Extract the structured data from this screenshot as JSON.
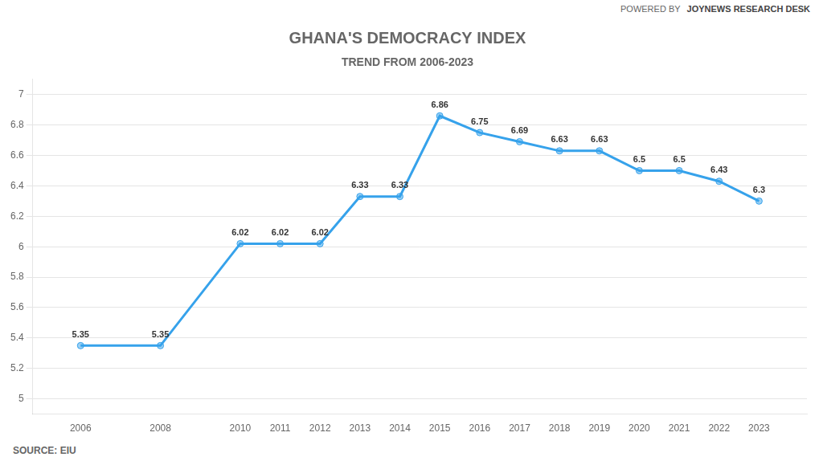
{
  "chart_data": {
    "type": "line",
    "title": "GHANA'S DEMOCRACY INDEX",
    "subtitle": "TREND FROM 2006-2023",
    "annotations": [
      "POWERED BY",
      "JOYNEWS RESEARCH DESK",
      "SOURCE: EIU"
    ],
    "x": [
      2006,
      2008,
      2010,
      2011,
      2012,
      2013,
      2014,
      2015,
      2016,
      2017,
      2018,
      2019,
      2020,
      2021,
      2022,
      2023
    ],
    "values": [
      5.35,
      5.35,
      6.02,
      6.02,
      6.02,
      6.33,
      6.33,
      6.86,
      6.75,
      6.69,
      6.63,
      6.63,
      6.5,
      6.5,
      6.43,
      6.3
    ],
    "xlim": [
      2004.8,
      2024.2
    ],
    "xticks": [
      2006,
      2008,
      2010,
      2011,
      2012,
      2013,
      2014,
      2015,
      2016,
      2017,
      2018,
      2019,
      2020,
      2021,
      2022,
      2023
    ],
    "ylim": [
      4.9,
      7.1
    ],
    "yticks": [
      5,
      5.2,
      5.4,
      5.6,
      5.8,
      6,
      6.2,
      6.4,
      6.6,
      6.8,
      7
    ],
    "grid": true,
    "data_labels": true,
    "marker": "circle",
    "line_style": "solid"
  }
}
